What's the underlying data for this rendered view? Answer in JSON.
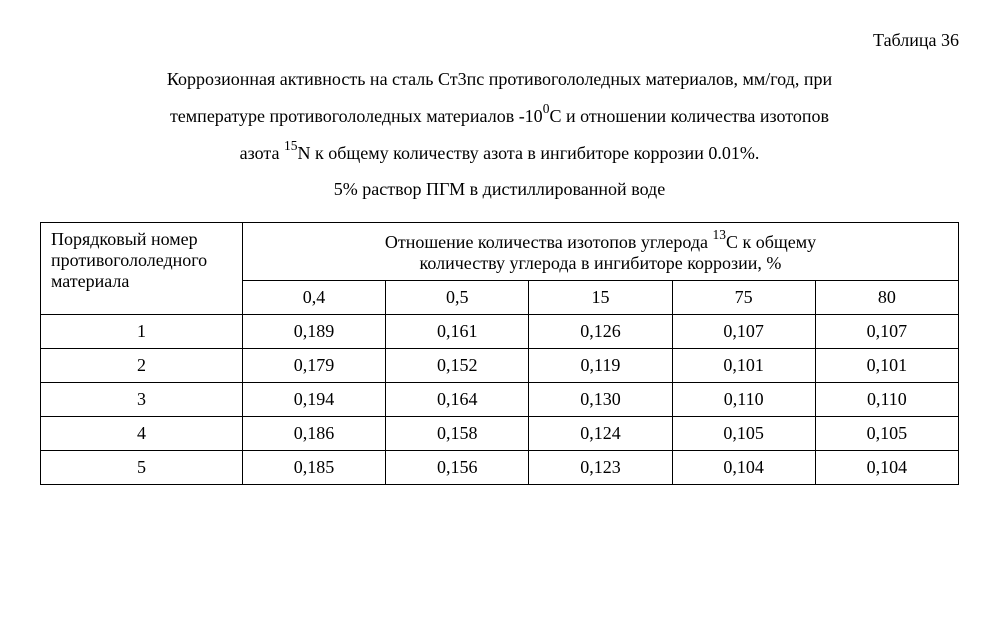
{
  "table_label": "Таблица 36",
  "caption_line1": "Коррозионная активность на сталь Ст3пс противогололедных материалов, мм/год, при",
  "caption_line2_a": "температуре противогололедных материалов -10",
  "caption_line2_sup": "0",
  "caption_line2_b": "С и отношении количества изотопов",
  "caption_line3_a": "азота ",
  "caption_line3_sup": "15",
  "caption_line3_b": "N  к общему количеству азота в ингибиторе коррозии 0.01%.",
  "caption_line4": "5% раствор ПГМ в дистиллированной воде",
  "header_first_col_l1": "Порядковый номер",
  "header_first_col_l2": "противогололедного",
  "header_first_col_l3": "материала",
  "header_group_l1a": "Отношение количества изотопов углерода ",
  "header_group_l1sup": "13",
  "header_group_l1b": "С к общему",
  "header_group_l2": "количеству углерода в ингибиторе коррозии, %",
  "col_labels": [
    "0,4",
    "0,5",
    "15",
    "75",
    "80"
  ],
  "rows": [
    {
      "n": "1",
      "v": [
        "0,189",
        "0,161",
        "0,126",
        "0,107",
        "0,107"
      ]
    },
    {
      "n": "2",
      "v": [
        "0,179",
        "0,152",
        "0,119",
        "0,101",
        "0,101"
      ]
    },
    {
      "n": "3",
      "v": [
        "0,194",
        "0,164",
        "0,130",
        "0,110",
        "0,110"
      ]
    },
    {
      "n": "4",
      "v": [
        "0,186",
        "0,158",
        "0,124",
        "0,105",
        "0,105"
      ]
    },
    {
      "n": "5",
      "v": [
        "0,185",
        "0,156",
        "0,123",
        "0,104",
        "0,104"
      ]
    }
  ]
}
